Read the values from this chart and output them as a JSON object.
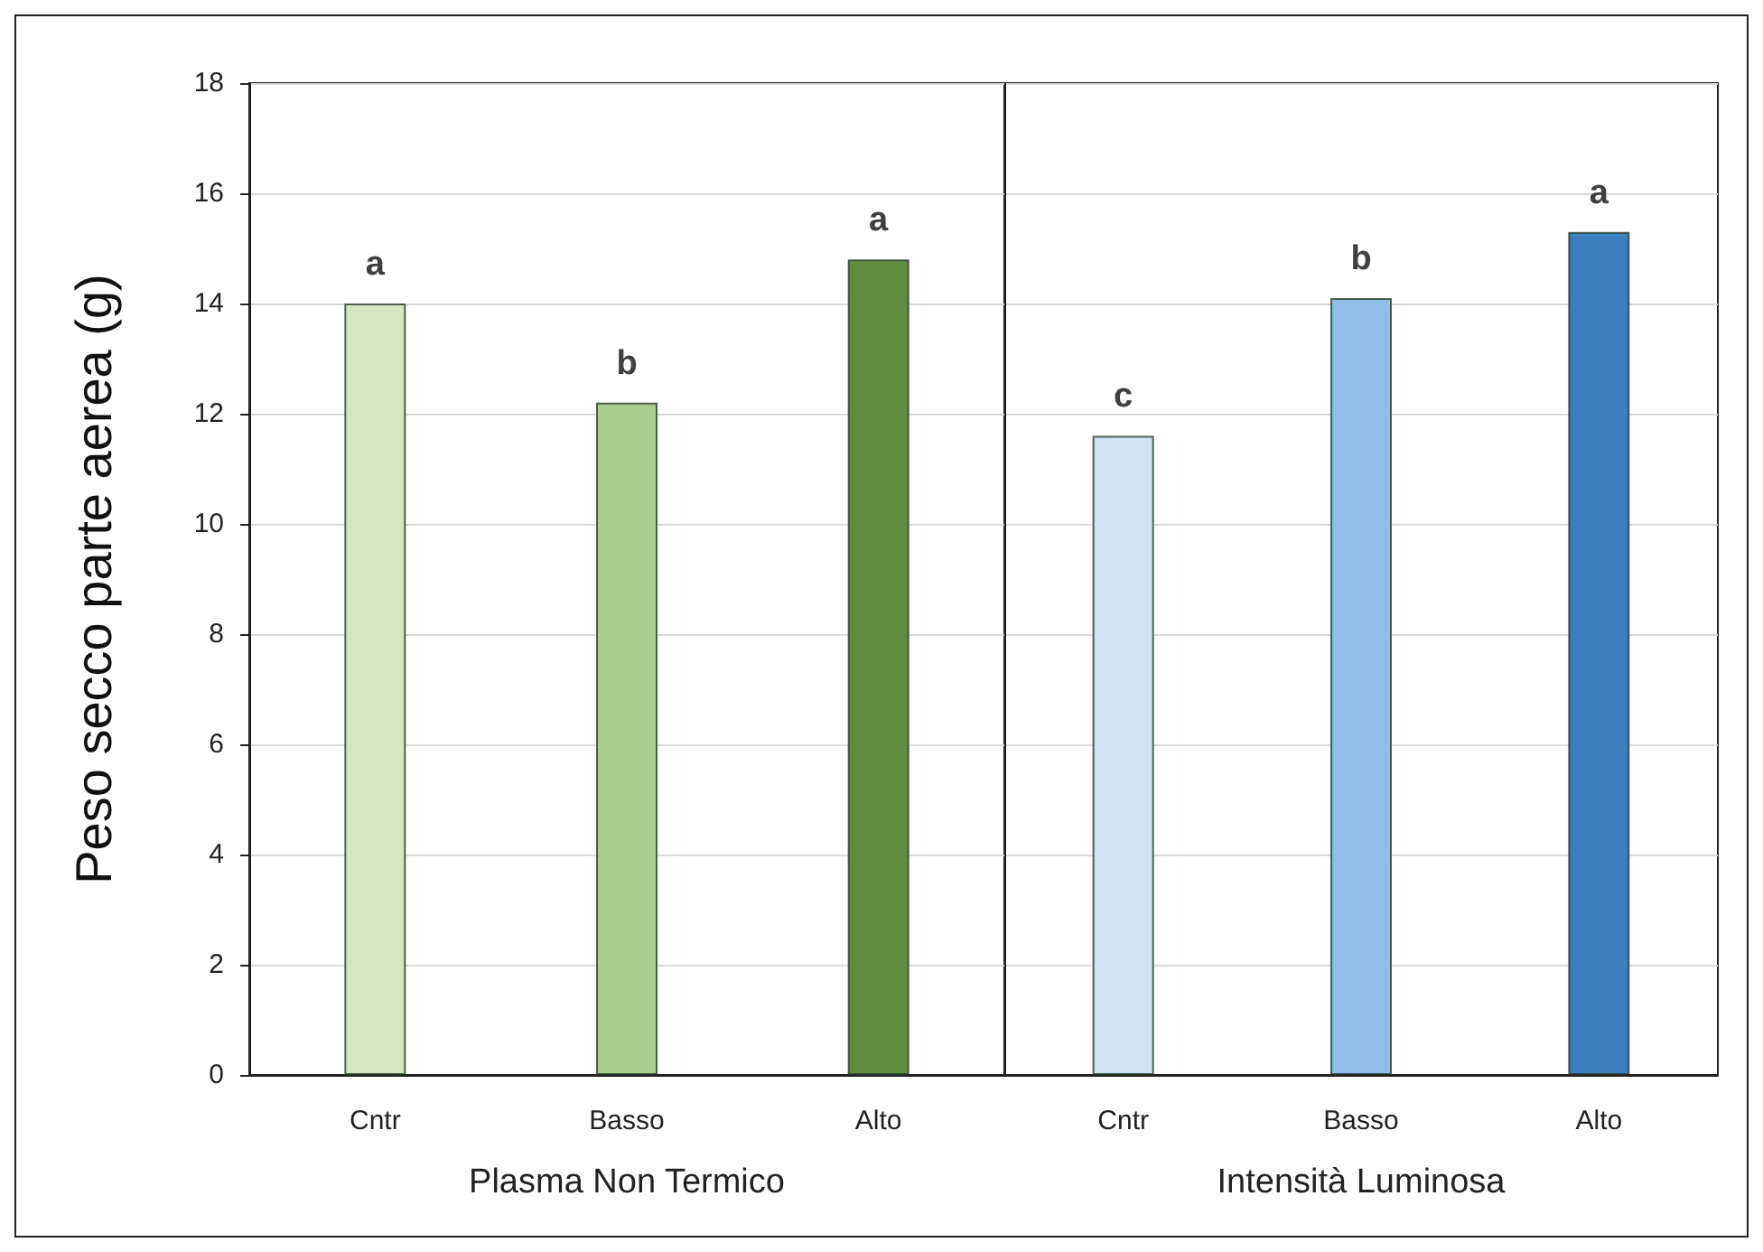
{
  "chart_data": [
    {
      "type": "bar",
      "categories": [
        "Cntr",
        "Basso",
        "Alto"
      ],
      "values": [
        14.0,
        12.2,
        14.8
      ],
      "colors": [
        "#d3e6c2",
        "#a9cf8c",
        "#5f8f3e"
      ],
      "ylim": [
        0,
        18
      ],
      "yticks": [
        0,
        2,
        4,
        6,
        8,
        10,
        12,
        14,
        16,
        18
      ],
      "ylabel": "Peso secco parte aerea (g)",
      "xlabel": "Plasma Non Termico",
      "grid": "y",
      "annotations": [
        {
          "text": "a",
          "x": "Cntr",
          "y": 14.0
        },
        {
          "text": "b",
          "x": "Basso",
          "y": 12.2
        },
        {
          "text": "a",
          "x": "Alto",
          "y": 14.8
        }
      ]
    },
    {
      "type": "bar",
      "categories": [
        "Cntr",
        "Basso",
        "Alto"
      ],
      "values": [
        11.6,
        14.1,
        15.3
      ],
      "colors": [
        "#cfe2f3",
        "#8ebde6",
        "#3c7fc0"
      ],
      "ylim": [
        0,
        18
      ],
      "yticks": [
        0,
        2,
        4,
        6,
        8,
        10,
        12,
        14,
        16,
        18
      ],
      "xlabel": "Intensità Luminosa",
      "grid": "y",
      "tick_labels": "x",
      "annotations": [
        {
          "text": "c",
          "x": "Cntr",
          "y": 11.6
        },
        {
          "text": "b",
          "x": "Basso",
          "y": 14.1
        },
        {
          "text": "a",
          "x": "Alto",
          "y": 15.3
        }
      ]
    }
  ]
}
